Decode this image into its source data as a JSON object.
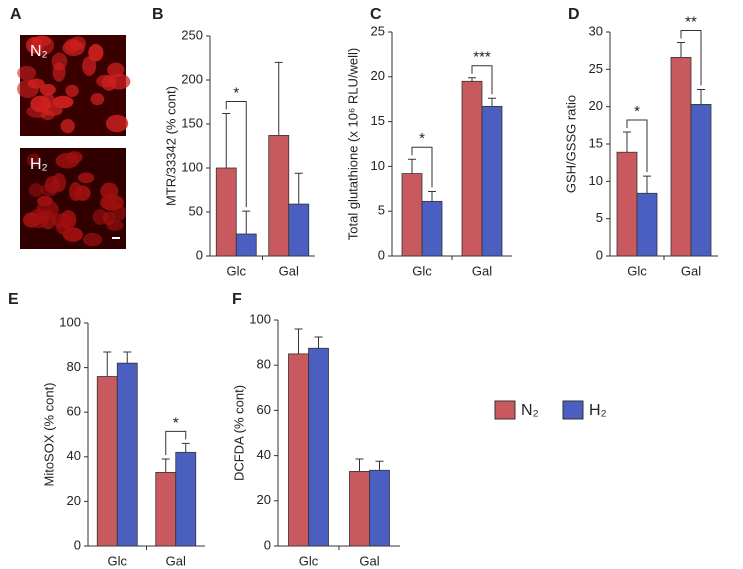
{
  "images": {
    "panel": "A",
    "labels": [
      "N₂",
      "H₂"
    ]
  },
  "legend": [
    {
      "name": "N₂",
      "color": "#c85a5f"
    },
    {
      "name": "H₂",
      "color": "#4a5fc0"
    }
  ],
  "chart_data": [
    {
      "type": "bar",
      "panel": "B",
      "ylabel": "MTR/33342 (% cont)",
      "categories": [
        "Glc",
        "Gal"
      ],
      "series": [
        {
          "values": [
            100,
            137
          ],
          "errors": [
            62,
            83
          ]
        },
        {
          "values": [
            25,
            59
          ],
          "errors": [
            26,
            35
          ]
        }
      ],
      "ylim": [
        0,
        250
      ],
      "yticks": [
        0,
        50,
        100,
        150,
        200,
        250
      ],
      "significance": [
        {
          "category": 0,
          "label": "*"
        }
      ]
    },
    {
      "type": "bar",
      "panel": "C",
      "ylabel": "Total glutathione (x 10⁶ RLU/well)",
      "categories": [
        "Glc",
        "Gal"
      ],
      "series": [
        {
          "values": [
            9.2,
            19.5
          ],
          "errors": [
            1.6,
            0.4
          ]
        },
        {
          "values": [
            6.1,
            16.7
          ],
          "errors": [
            1.1,
            0.9
          ]
        }
      ],
      "ylim": [
        0,
        25
      ],
      "yticks": [
        0,
        5,
        10,
        15,
        20,
        25
      ],
      "significance": [
        {
          "category": 0,
          "label": "*"
        },
        {
          "category": 1,
          "label": "***"
        }
      ]
    },
    {
      "type": "bar",
      "panel": "D",
      "ylabel": "GSH/GSSG ratio",
      "categories": [
        "Glc",
        "Gal"
      ],
      "series": [
        {
          "values": [
            13.9,
            26.6
          ],
          "errors": [
            2.7,
            2.0
          ]
        },
        {
          "values": [
            8.4,
            20.3
          ],
          "errors": [
            2.3,
            2.0
          ]
        }
      ],
      "ylim": [
        0,
        30
      ],
      "yticks": [
        0,
        5,
        10,
        15,
        20,
        25,
        30
      ],
      "significance": [
        {
          "category": 0,
          "label": "*"
        },
        {
          "category": 1,
          "label": "**"
        }
      ]
    },
    {
      "type": "bar",
      "panel": "E",
      "ylabel": "MitoSOX (% cont)",
      "categories": [
        "Glc",
        "Gal"
      ],
      "series": [
        {
          "values": [
            76,
            33
          ],
          "errors": [
            11,
            6
          ]
        },
        {
          "values": [
            82,
            42
          ],
          "errors": [
            5,
            4
          ]
        }
      ],
      "ylim": [
        0,
        100
      ],
      "yticks": [
        0,
        20,
        40,
        60,
        80,
        100
      ],
      "significance": [
        {
          "category": 1,
          "label": "*"
        }
      ]
    },
    {
      "type": "bar",
      "panel": "F",
      "ylabel": "DCFDA (% cont)",
      "categories": [
        "Glc",
        "Gal"
      ],
      "series": [
        {
          "values": [
            85,
            33
          ],
          "errors": [
            11,
            5.5
          ]
        },
        {
          "values": [
            87.5,
            33.5
          ],
          "errors": [
            5,
            4
          ]
        }
      ],
      "ylim": [
        0,
        100
      ],
      "yticks": [
        0,
        20,
        40,
        60,
        80,
        100
      ],
      "significance": []
    }
  ]
}
